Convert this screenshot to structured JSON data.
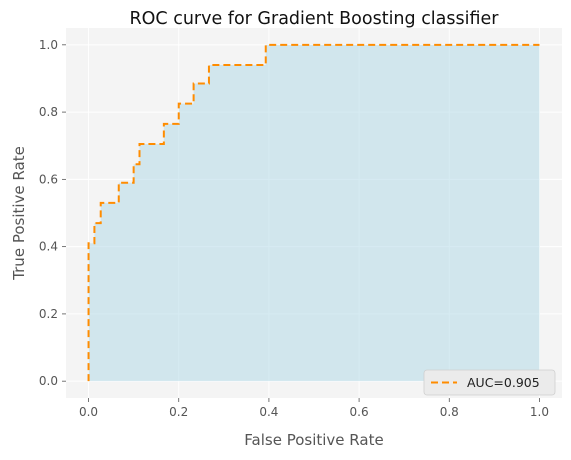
{
  "chart_data": {
    "type": "line",
    "title": "ROC curve for Gradient Boosting classifier",
    "xlabel": "False Positive Rate",
    "ylabel": "True Positive Rate",
    "xlim": [
      -0.05,
      1.05
    ],
    "ylim": [
      -0.05,
      1.05
    ],
    "xticks": [
      0.0,
      0.2,
      0.4,
      0.6,
      0.8,
      1.0
    ],
    "yticks": [
      0.0,
      0.2,
      0.4,
      0.6,
      0.8,
      1.0
    ],
    "xtick_labels": [
      "0.0",
      "0.2",
      "0.4",
      "0.6",
      "0.8",
      "1.0"
    ],
    "ytick_labels": [
      "0.0",
      "0.2",
      "0.4",
      "0.6",
      "0.8",
      "1.0"
    ],
    "grid": true,
    "legend_position": "bottom-right",
    "series": [
      {
        "name": "AUC=0.905",
        "style": "dashed-step",
        "fill_under": true,
        "x": [
          0.0,
          0.0,
          0.0,
          0.013,
          0.013,
          0.027,
          0.027,
          0.067,
          0.067,
          0.1,
          0.1,
          0.113,
          0.113,
          0.167,
          0.167,
          0.2,
          0.2,
          0.233,
          0.233,
          0.267,
          0.267,
          0.393,
          0.393,
          1.0
        ],
        "y": [
          0.0,
          0.41,
          0.41,
          0.41,
          0.47,
          0.47,
          0.53,
          0.53,
          0.59,
          0.59,
          0.645,
          0.645,
          0.705,
          0.705,
          0.765,
          0.765,
          0.825,
          0.825,
          0.885,
          0.885,
          0.94,
          0.94,
          1.0,
          1.0
        ]
      }
    ]
  },
  "colors": {
    "line": "#ff8c00",
    "fill": "#add8e6",
    "plot_bg": "#f4f4f4",
    "grid": "#ffffff"
  }
}
